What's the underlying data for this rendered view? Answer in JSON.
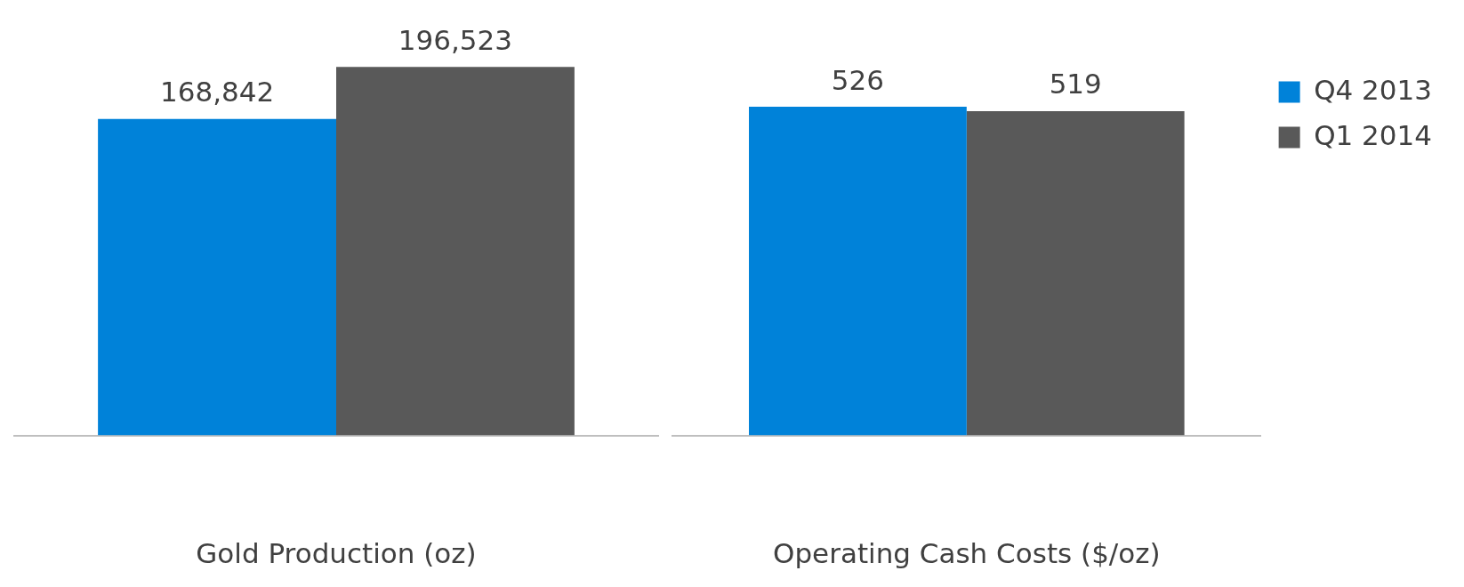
{
  "chart_data": [
    {
      "type": "bar",
      "categories": [
        null
      ],
      "xlabel": "Gold Production (oz)",
      "tick_labels": "x",
      "grid": false,
      "legend": false,
      "series": [
        {
          "color": "#0082d9",
          "values": [
            168842
          ],
          "value_labels": [
            "168,842"
          ]
        },
        {
          "color": "#595959",
          "values": [
            196523
          ],
          "value_labels": [
            "196,523"
          ]
        }
      ]
    },
    {
      "type": "bar",
      "categories": [
        null
      ],
      "xlabel": "Operating Cash Costs ($/oz)",
      "tick_labels": "x",
      "grid": false,
      "legend": "top right",
      "series": [
        {
          "name": "Q4 2013",
          "color": "#0082d9",
          "values": [
            526
          ],
          "value_labels": [
            "526"
          ]
        },
        {
          "name": "Q1 2014",
          "color": "#595959",
          "values": [
            519
          ],
          "value_labels": [
            "519"
          ]
        }
      ]
    }
  ]
}
